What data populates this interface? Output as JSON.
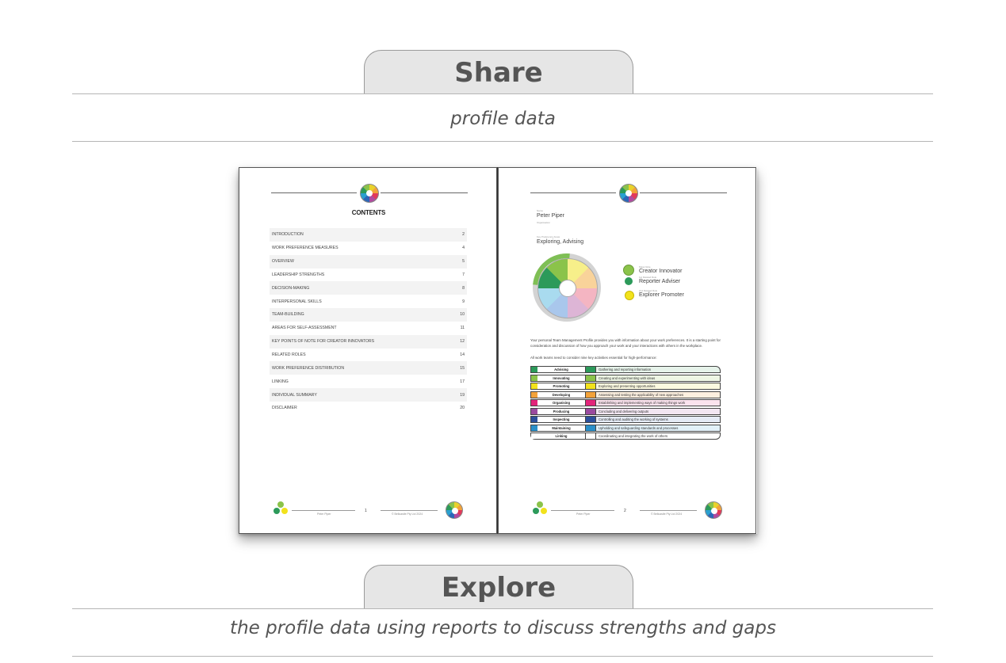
{
  "sections": {
    "share": {
      "title": "Share",
      "subtitle": "profile data"
    },
    "explore": {
      "title": "Explore",
      "subtitle": "the profile data using reports to discuss strengths and gaps"
    }
  },
  "left_page": {
    "heading": "CONTENTS",
    "toc": [
      {
        "label": "INTRODUCTION",
        "page": "2"
      },
      {
        "label": "WORK PREFERENCE MEASURES",
        "page": "4"
      },
      {
        "label": "OVERVIEW",
        "page": "5"
      },
      {
        "label": "LEADERSHIP STRENGTHS",
        "page": "7"
      },
      {
        "label": "DECISION-MAKING",
        "page": "8"
      },
      {
        "label": "INTERPERSONAL SKILLS",
        "page": "9"
      },
      {
        "label": "TEAM-BUILDING",
        "page": "10"
      },
      {
        "label": "AREAS FOR SELF-ASSESSMENT",
        "page": "11"
      },
      {
        "label": "KEY POINTS OF NOTE FOR CREATOR INNOVATORS",
        "page": "12"
      },
      {
        "label": "RELATED ROLES",
        "page": "14"
      },
      {
        "label": "WORK PREFERENCE DISTRIBUTION",
        "page": "15"
      },
      {
        "label": "LINKING",
        "page": "17"
      },
      {
        "label": "INDIVIDUAL SUMMARY",
        "page": "19"
      },
      {
        "label": "DISCLAIMER",
        "page": "20"
      }
    ],
    "footer": {
      "name": "Peter Piper",
      "page": "1",
      "copyright": "© Bellcastle Pty Ltd 2024"
    }
  },
  "right_page": {
    "name_label": "Name",
    "name": "Peter Piper",
    "org_label": "Organisation",
    "key_pref_label": "Key Preference Areas",
    "key_pref": "Exploring, Advising",
    "roles": [
      {
        "label": "Major Role",
        "name": "Creator Innovator",
        "color": "#8bc34a"
      },
      {
        "label": "1st Related Role",
        "name": "Reporter Adviser",
        "color": "#2c9a5a"
      },
      {
        "label": "2nd Related Role",
        "name": "Explorer Promoter",
        "color": "#f2e21c"
      }
    ],
    "intro_1": "Your personal Team Management Profile provides you with information about your work preferences. It is a starting point for consideration and discussion of how you approach your work and your interactions with others in the workplace.",
    "intro_2": "All work teams need to consider nine key activities essential for high-performance:",
    "activities": [
      {
        "name": "Advising",
        "desc": "Gathering and reporting information",
        "color": "#2c9a5a",
        "bg": "#e6f3ea"
      },
      {
        "name": "Innovating",
        "desc": "Creating and experimenting with ideas",
        "color": "#8bc34a",
        "bg": "#eef6e4"
      },
      {
        "name": "Promoting",
        "desc": "Exploring and presenting opportunities",
        "color": "#f2e21c",
        "bg": "#fcfae0"
      },
      {
        "name": "Developing",
        "desc": "Assessing and testing the applicability of new approaches",
        "color": "#f2a23a",
        "bg": "#fdf0e0"
      },
      {
        "name": "Organising",
        "desc": "Establishing and implementing ways of making things work",
        "color": "#e2247a",
        "bg": "#fbe3ee"
      },
      {
        "name": "Producing",
        "desc": "Concluding and delivering outputs",
        "color": "#9a4a9e",
        "bg": "#f2e6f2"
      },
      {
        "name": "Inspecting",
        "desc": "Controlling and auditing the working of systems",
        "color": "#2c4f9a",
        "bg": "#e4eaf5"
      },
      {
        "name": "Maintaining",
        "desc": "Upholding and safeguarding standards and processes",
        "color": "#2a8fc8",
        "bg": "#e2f1f9"
      },
      {
        "name": "Linking",
        "desc": "Coordinating and integrating the work of others",
        "color": "#ffffff",
        "bg": "#ffffff"
      }
    ],
    "footer": {
      "name": "Peter Piper",
      "page": "2",
      "copyright": "© Bellcastle Pty Ltd 2024"
    }
  }
}
